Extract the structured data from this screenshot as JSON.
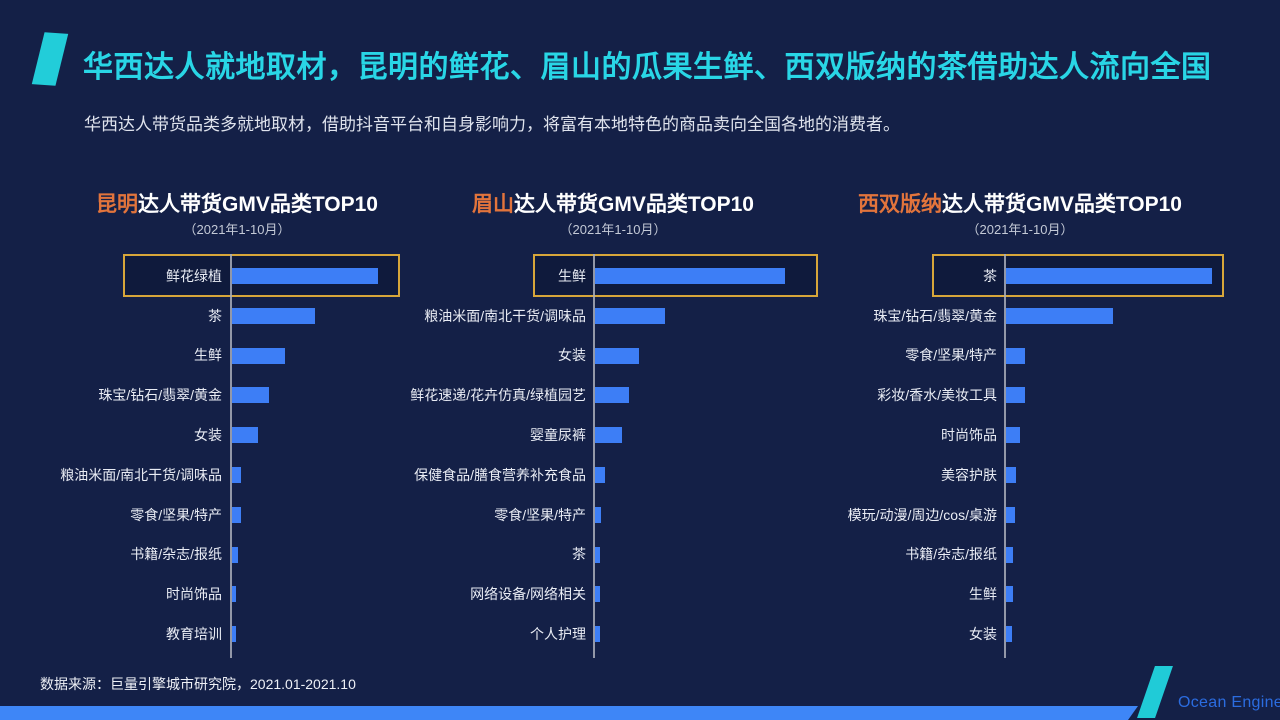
{
  "slide": {
    "title": "华西达人就地取材，昆明的鲜花、眉山的瓜果生鲜、西双版纳的茶借助达人流向全国",
    "subtitle": "华西达人带货品类多就地取材，借助抖音平台和自身影响力，将富有本地特色的商品卖向全国各地的消费者。",
    "source_note": "数据来源：巨量引擎城市研究院，2021.01-2021.10",
    "brand": "Ocean Engine"
  },
  "colors": {
    "background": "#142047",
    "title_cyan": "#29d6e6",
    "city_orange": "#e2743c",
    "bar_blue": "#3d7ef6",
    "highlight_gold": "#d7a63a",
    "footer_strip_blue": "#3e86f7",
    "logo_cyan": "#20cbd7",
    "brand_text_blue": "#2b6ce0"
  },
  "chart_data": [
    {
      "type": "bar",
      "orientation": "horizontal",
      "title_city": "昆明",
      "title_rest": "达人带货GMV品类TOP10",
      "period": "（2021年1-10月）",
      "highlight_index": 0,
      "highlight_label": "鲜花绿植",
      "categories": [
        "鲜花绿植",
        "茶",
        "生鲜",
        "珠宝/钻石/翡翠/黄金",
        "女装",
        "粮油米面/南北干货/调味品",
        "零食/坚果/特产",
        "书籍/杂志/报纸",
        "时尚饰品",
        "教育培训"
      ],
      "values": [
        100,
        57,
        36,
        25,
        18,
        6,
        6,
        4,
        3,
        3
      ],
      "value_unit": "relative GMV (indexed, top category = 100; no numeric axis shown)"
    },
    {
      "type": "bar",
      "orientation": "horizontal",
      "title_city": "眉山",
      "title_rest": "达人带货GMV品类TOP10",
      "period": "（2021年1-10月）",
      "highlight_index": 0,
      "highlight_label": "生鲜",
      "categories": [
        "生鲜",
        "粮油米面/南北干货/调味品",
        "女装",
        "鲜花速递/花卉仿真/绿植园艺",
        "婴童尿裤",
        "保健食品/膳食营养补充食品",
        "零食/坚果/特产",
        "茶",
        "网络设备/网络相关",
        "个人护理"
      ],
      "values": [
        100,
        37,
        23,
        18,
        14,
        5,
        3,
        2.6,
        2.6,
        2.6
      ],
      "value_unit": "relative GMV (indexed, top category = 100; no numeric axis shown)"
    },
    {
      "type": "bar",
      "orientation": "horizontal",
      "title_city": "西双版纳",
      "title_rest": "达人带货GMV品类TOP10",
      "period": "（2021年1-10月）",
      "highlight_index": 0,
      "highlight_label": "茶",
      "categories": [
        "茶",
        "珠宝/钻石/翡翠/黄金",
        "零食/坚果/特产",
        "彩妆/香水/美妆工具",
        "时尚饰品",
        "美容护肤",
        "模玩/动漫/周边/cos/桌游",
        "书籍/杂志/报纸",
        "生鲜",
        "女装"
      ],
      "values": [
        100,
        52,
        9,
        9,
        7,
        5,
        4.5,
        3.5,
        3.5,
        3
      ],
      "value_unit": "relative GMV (indexed, top category = 100; no numeric axis shown)"
    }
  ]
}
